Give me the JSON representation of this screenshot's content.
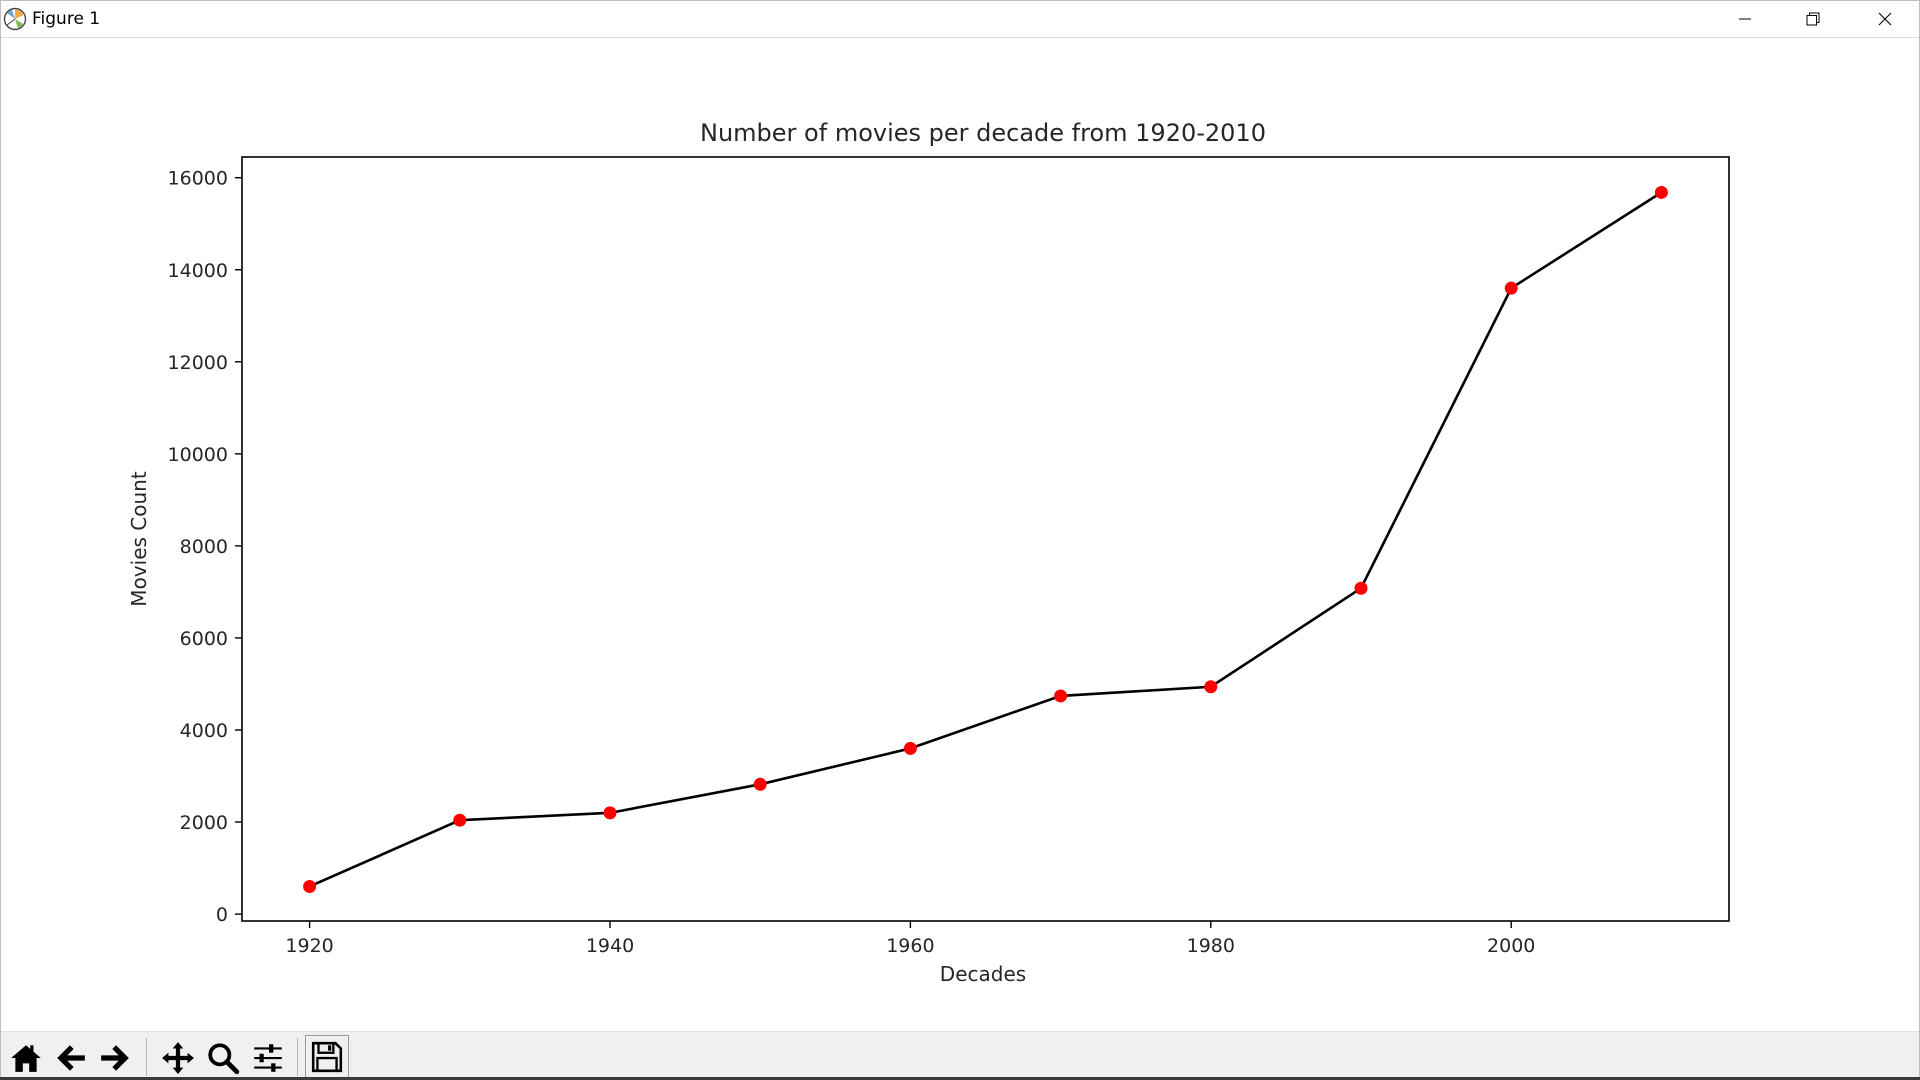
{
  "window": {
    "title": "Figure 1"
  },
  "toolbar": {
    "icons": [
      "home-icon",
      "back-arrow-icon",
      "forward-arrow-icon",
      "pan-icon",
      "zoom-icon",
      "configure-subplots-icon",
      "save-icon"
    ]
  },
  "colors": {
    "line": "#000000",
    "marker": "#ff0000",
    "text": "#262626"
  },
  "chart_data": {
    "type": "line",
    "title": "Number of movies per decade from 1920-2010",
    "xlabel": "Decades",
    "ylabel": "Movies Count",
    "x": [
      1920,
      1930,
      1940,
      1950,
      1960,
      1970,
      1980,
      1990,
      2000,
      2010
    ],
    "y": [
      600,
      2040,
      2200,
      2820,
      3600,
      4740,
      4940,
      7080,
      13600,
      15680
    ],
    "xticks": [
      1920,
      1940,
      1960,
      1980,
      2000
    ],
    "yticks": [
      0,
      2000,
      4000,
      6000,
      8000,
      10000,
      12000,
      14000,
      16000
    ],
    "xlim": [
      1915.5,
      2014.5
    ],
    "ylim": [
      -150,
      16450
    ],
    "grid": false,
    "marker": "circle"
  }
}
